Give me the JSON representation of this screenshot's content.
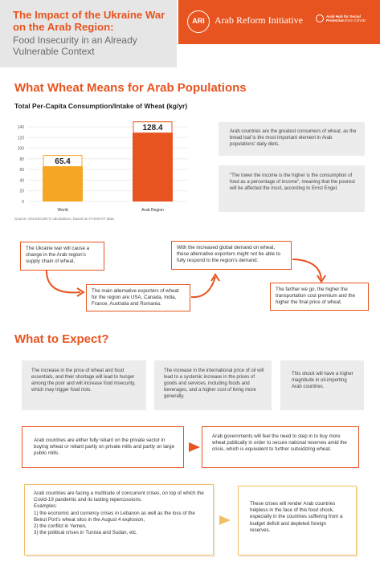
{
  "header": {
    "title": "The Impact of the Ukraine War on the Arab Region:",
    "subtitle": "Food Insecurity in an Already Vulnerable Context",
    "logo_text": "ARI",
    "org_name": "Arab Reform Initiative",
    "hub_title": "Arab Hub for Social Protection",
    "hub_sub": "from COVID"
  },
  "section1": {
    "title": "What Wheat Means for Arab Populations",
    "info1": "Arab countries are the greatest consumers of wheat, as the bread loaf is the most important element in Arab populations' daily diets.",
    "info2": "\"The lower the income is the higher is the consumption of food as a percentage of income\", meaning that the poorest will be affected the most, according to Ernst Engel."
  },
  "chart_data": {
    "type": "bar",
    "title": "Total Per-Capita Consumption/Intake of Wheat (kg/yr)",
    "categories": [
      "World",
      "Arab Region"
    ],
    "values": [
      65.4,
      128.4
    ],
    "value_labels": [
      "65.4",
      "128.4"
    ],
    "colors": [
      "#f5a623",
      "#e8541f"
    ],
    "ylim": [
      0,
      140
    ],
    "yticks": [
      "0",
      "20",
      "40",
      "60",
      "80",
      "100",
      "120",
      "140"
    ],
    "grid": true,
    "source": "Source: UN-ESCWA's calculations, based on FAOSTAT data."
  },
  "flow": {
    "step1": "The Ukraine war will cause a change in the Arab region's supply chain of wheat.",
    "step2": "The main alternative exporters of wheat for the region are USA, Canada, India, France, Australia and Romania.",
    "step3": "With the increased global demand on wheat, these alternative exporters might not be able to fully respond to the region's demand.",
    "step4": "The farther we go, the higher the transportation cost premium and the higher the final price of wheat."
  },
  "section2": {
    "title": "What to Expect?",
    "g1": "The increase in the price of wheat and food essentials, and their shortage will lead to hunger among the poor and will increase food insecurity, which may trigger food riots.",
    "g2": "The increase in the international price of oil will lead to a systemic increase in the prices of goods and services, including foods and beverages, and a higher cost of living more generally.",
    "g3": "This shock will have a higher magnitude in oil-importing Arab countries.",
    "o1": "Arab countries are either fully reliant on the private sector in buying wheat or reliant partly on private mills and partly on large public mills.",
    "o2": "Arab governments will feel the need to step in to buy more wheat publically in order to secure national reserves amid the crisis, which is equivalent to further subsidizing wheat.",
    "y1_intro": "Arab countries are facing a multitude of concurrent crises, on top of which the Covid-19 pandemic and its lasting repercussions.",
    "y1_examples": "Examples:",
    "y1_list": [
      "1)  the economic and currency crises in Lebanon as well as the loss of the Beirut Port's wheat silos in the August 4 explosion,",
      "2)  the conflict in Yemen,",
      "3)  the political crises in Tunisia and Sudan, etc."
    ],
    "y2": "These crises will render Arab countries helpless in the face of this food shock, especially in the countries suffering from a budget deficit and depleted foreign reserves."
  }
}
